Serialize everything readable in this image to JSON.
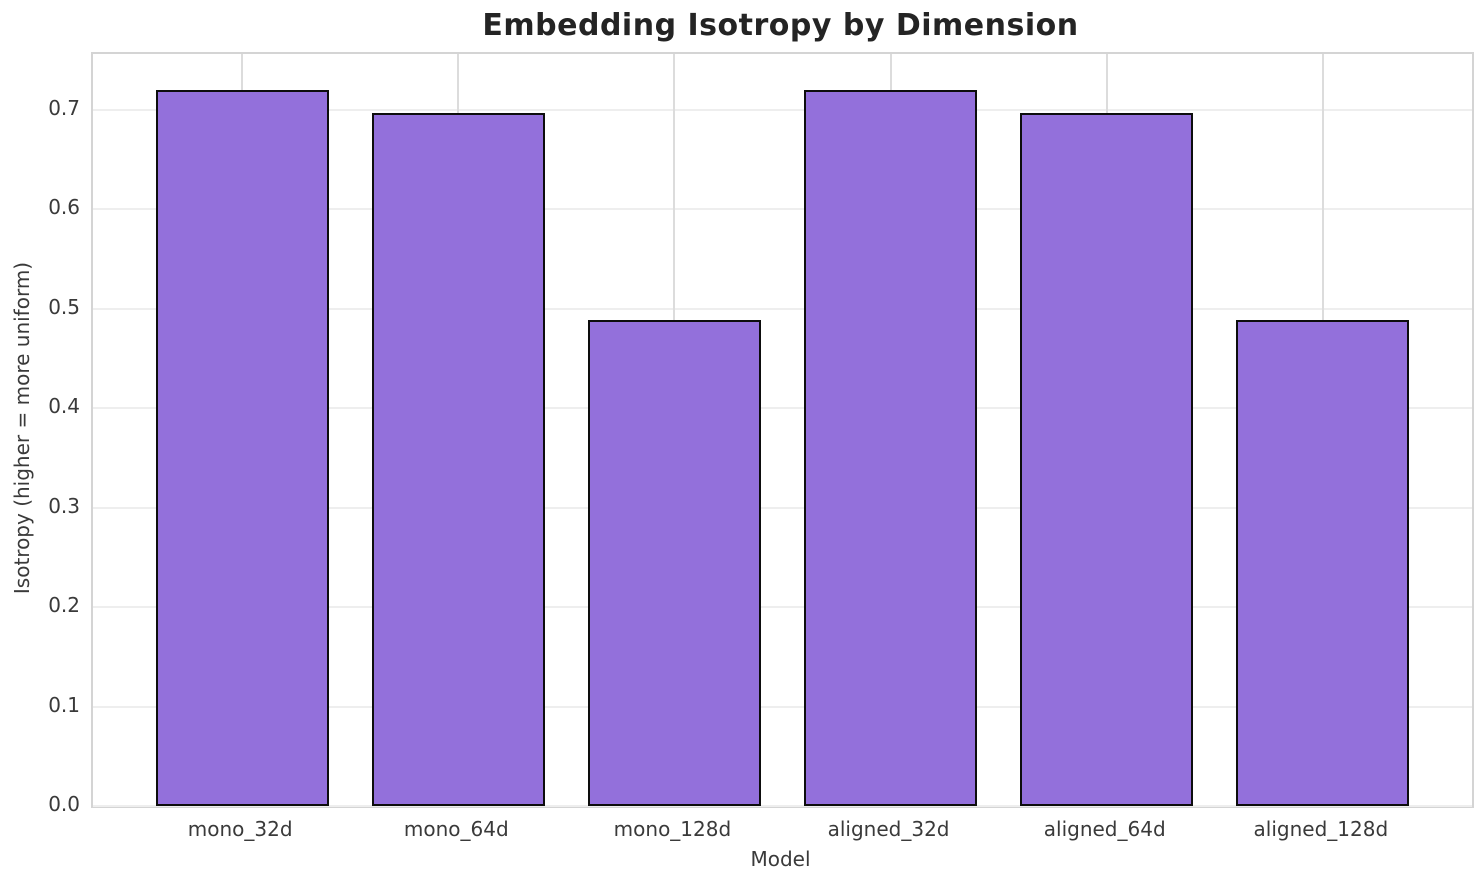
{
  "chart_data": {
    "type": "bar",
    "title": "Embedding Isotropy by Dimension",
    "xlabel": "Model",
    "ylabel": "Isotropy (higher = more uniform)",
    "categories": [
      "mono_32d",
      "mono_64d",
      "mono_128d",
      "aligned_32d",
      "aligned_64d",
      "aligned_128d"
    ],
    "values": [
      0.72,
      0.697,
      0.489,
      0.72,
      0.697,
      0.489
    ],
    "yticks": [
      0.0,
      0.1,
      0.2,
      0.3,
      0.4,
      0.5,
      0.6,
      0.7
    ],
    "ylim": [
      0,
      0.756
    ],
    "grid": true,
    "legend": "none",
    "bar_fill_color": "#9370DB",
    "bar_edge_color": "#0d0d0d",
    "horizontal_grid_color": "#eeeeee",
    "vertical_grid_color": "#dcdcdc",
    "spine_color": "#d4d4d4",
    "tick_text_color": "#3a3a3a",
    "title_color": "#242424"
  }
}
